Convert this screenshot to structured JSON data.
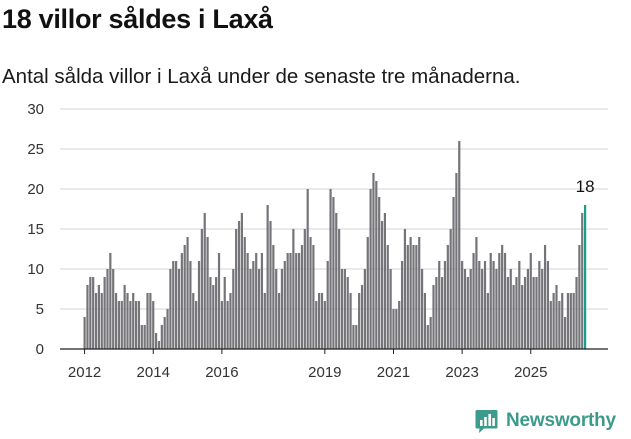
{
  "title": "18 villor såldes i Laxå",
  "subtitle": "Antal sålda villor i Laxå under de senaste tre månaderna.",
  "brand": {
    "name": "Newsworthy",
    "icon": "bar-chart-logo-icon",
    "color": "#3d9b8d"
  },
  "colors": {
    "bar": "#747479",
    "highlight": "#1a9d8f"
  },
  "chart_data": {
    "type": "bar",
    "title": "",
    "xlabel": "",
    "ylabel": "",
    "ylim": [
      0,
      30
    ],
    "yticks": [
      0,
      5,
      10,
      15,
      20,
      25,
      30
    ],
    "xtick_labels": [
      "2012",
      "2014",
      "2016",
      "2019",
      "2021",
      "2023",
      "2025"
    ],
    "grid": true,
    "highlight_label": "18",
    "values": [
      4,
      8,
      9,
      9,
      7,
      8,
      7,
      9,
      10,
      12,
      10,
      7,
      6,
      6,
      8,
      7,
      6,
      7,
      6,
      6,
      3,
      3,
      7,
      7,
      6,
      2,
      1,
      3,
      4,
      5,
      10,
      11,
      11,
      10,
      12,
      13,
      14,
      11,
      7,
      6,
      11,
      15,
      17,
      14,
      9,
      8,
      9,
      12,
      6,
      9,
      6,
      7,
      10,
      15,
      16,
      17,
      14,
      12,
      10,
      11,
      12,
      10,
      12,
      7,
      18,
      16,
      13,
      10,
      7,
      10,
      11,
      12,
      12,
      15,
      12,
      12,
      13,
      15,
      20,
      14,
      13,
      6,
      7,
      7,
      6,
      11,
      20,
      19,
      17,
      15,
      10,
      10,
      9,
      7,
      3,
      3,
      7,
      8,
      10,
      14,
      20,
      22,
      21,
      19,
      16,
      17,
      13,
      10,
      5,
      5,
      6,
      11,
      15,
      13,
      14,
      13,
      13,
      14,
      10,
      7,
      3,
      4,
      8,
      9,
      11,
      9,
      11,
      13,
      15,
      19,
      22,
      26,
      11,
      10,
      9,
      10,
      12,
      14,
      11,
      10,
      11,
      7,
      12,
      11,
      10,
      12,
      13,
      12,
      9,
      10,
      8,
      9,
      11,
      8,
      9,
      10,
      12,
      9,
      9,
      11,
      10,
      13,
      11,
      6,
      7,
      8,
      6,
      7,
      4,
      7,
      7,
      7,
      9,
      13,
      17,
      18
    ],
    "highlight_index": 175
  }
}
